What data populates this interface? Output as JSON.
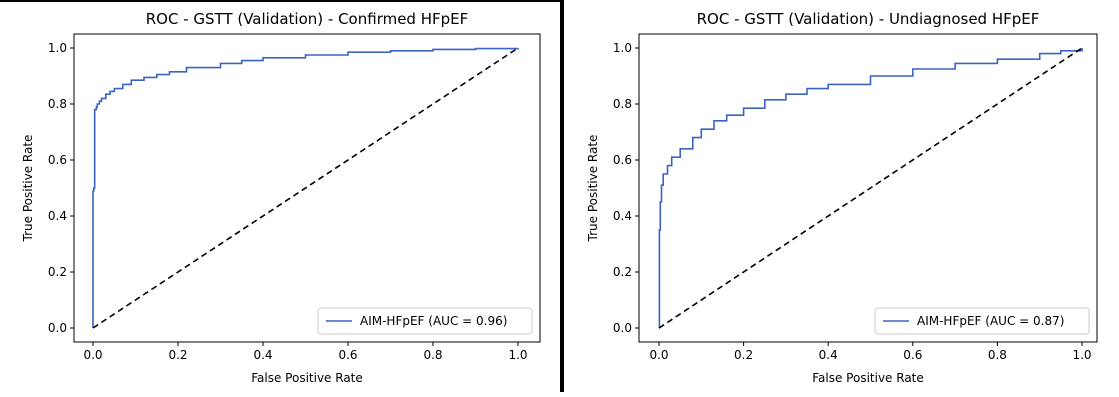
{
  "colors": {
    "curve": "#3a63c2",
    "diagonal": "#000000",
    "axis": "#000000"
  },
  "chart_data": [
    {
      "type": "line",
      "title": "ROC - GSTT (Validation) - Confirmed HFpEF",
      "xlabel": "False Positive Rate",
      "ylabel": "True Positive Rate",
      "xlim": [
        0,
        1
      ],
      "ylim": [
        0,
        1
      ],
      "xticks": [
        "0.0",
        "0.2",
        "0.4",
        "0.6",
        "0.8",
        "1.0"
      ],
      "yticks": [
        "0.0",
        "0.2",
        "0.4",
        "0.6",
        "0.8",
        "1.0"
      ],
      "grid": false,
      "legend_position": "lower-right",
      "series": [
        {
          "name": "AIM-HFpEF (AUC = 0.96)",
          "x": [
            0,
            0,
            0.002,
            0.004,
            0.004,
            0.008,
            0.01,
            0.015,
            0.02,
            0.03,
            0.04,
            0.05,
            0.07,
            0.09,
            0.12,
            0.15,
            0.18,
            0.22,
            0.3,
            0.35,
            0.4,
            0.5,
            0.6,
            0.7,
            0.8,
            0.9,
            1.0
          ],
          "y": [
            0,
            0.49,
            0.5,
            0.76,
            0.78,
            0.79,
            0.8,
            0.81,
            0.82,
            0.835,
            0.845,
            0.855,
            0.87,
            0.885,
            0.895,
            0.905,
            0.915,
            0.93,
            0.945,
            0.955,
            0.965,
            0.975,
            0.985,
            0.99,
            0.995,
            0.998,
            1.0
          ]
        },
        {
          "name": "",
          "style": "dashed",
          "x": [
            0,
            1
          ],
          "y": [
            0,
            1
          ]
        }
      ]
    },
    {
      "type": "line",
      "title": "ROC - GSTT (Validation) - Undiagnosed HFpEF",
      "xlabel": "False Positive Rate",
      "ylabel": "True Positive Rate",
      "xlim": [
        0,
        1
      ],
      "ylim": [
        0,
        1
      ],
      "xticks": [
        "0.0",
        "0.2",
        "0.4",
        "0.6",
        "0.8",
        "1.0"
      ],
      "yticks": [
        "0.0",
        "0.2",
        "0.4",
        "0.6",
        "0.8",
        "1.0"
      ],
      "grid": false,
      "legend_position": "lower-right",
      "series": [
        {
          "name": "AIM-HFpEF (AUC = 0.87)",
          "x": [
            0,
            0.001,
            0.003,
            0.006,
            0.01,
            0.02,
            0.03,
            0.05,
            0.08,
            0.1,
            0.13,
            0.16,
            0.2,
            0.25,
            0.3,
            0.35,
            0.4,
            0.5,
            0.6,
            0.7,
            0.8,
            0.9,
            0.95,
            1.0
          ],
          "y": [
            0,
            0.35,
            0.45,
            0.51,
            0.55,
            0.58,
            0.61,
            0.64,
            0.68,
            0.71,
            0.74,
            0.76,
            0.785,
            0.815,
            0.835,
            0.855,
            0.87,
            0.9,
            0.925,
            0.945,
            0.96,
            0.98,
            0.99,
            1.0
          ]
        },
        {
          "name": "",
          "style": "dashed",
          "x": [
            0,
            1
          ],
          "y": [
            0,
            1
          ]
        }
      ]
    }
  ]
}
